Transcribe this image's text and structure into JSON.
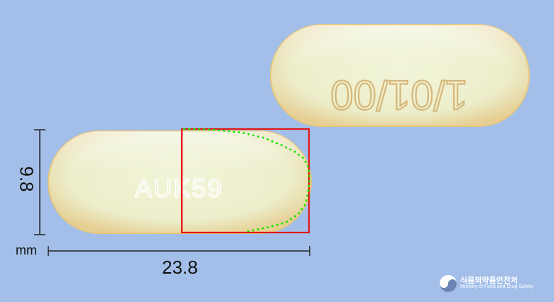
{
  "imprint_front": "AUK59",
  "imprint_back": "1/01/00",
  "dimensions": {
    "length": "23.8",
    "width": "9.8",
    "unit": "mm"
  },
  "brand": {
    "korean": "식품의약품안전처",
    "english": "Ministry of Food and Drug Safety"
  },
  "colors": {
    "background": "#a3bfe9",
    "capsule": "#eef0cf",
    "capsule_edge": "#e6b85d",
    "bounding_box": "#e01818",
    "edge_trace": "#19e600"
  }
}
